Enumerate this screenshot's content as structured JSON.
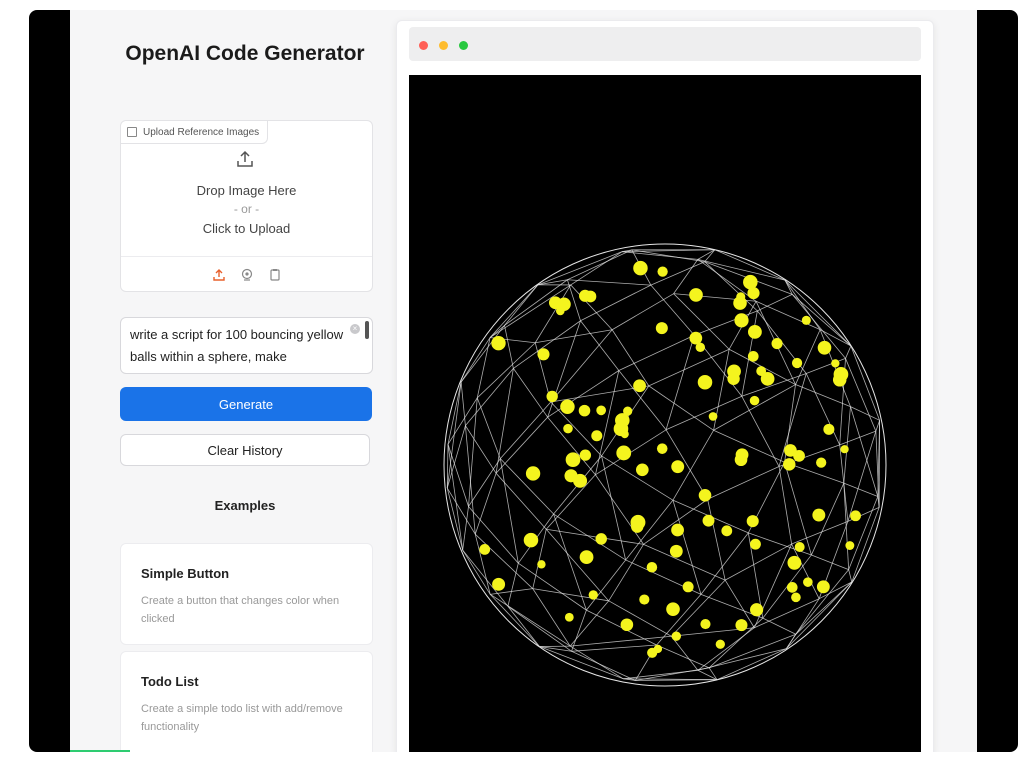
{
  "app": {
    "title": "OpenAI Code Generator"
  },
  "upload": {
    "label": "Upload Reference Images",
    "drop_text": "Drop Image Here",
    "or_text": "- or -",
    "click_text": "Click to Upload",
    "tools": [
      "upload-icon",
      "webcam-icon",
      "clipboard-icon"
    ]
  },
  "prompt": {
    "value": "write a script for 100 bouncing yellow balls within a sphere, make"
  },
  "buttons": {
    "generate": "Generate",
    "clear_history": "Clear History"
  },
  "examples": {
    "heading": "Examples",
    "items": [
      {
        "title": "Simple Button",
        "description": "Create a button that changes color when clicked"
      },
      {
        "title": "Todo List",
        "description": "Create a simple todo list with add/remove functionality"
      }
    ]
  },
  "preview": {
    "window_controls": [
      "close",
      "minimize",
      "maximize"
    ],
    "ball_color": "#f4f41e",
    "sphere_line_color": "#e6e6e6",
    "background": "#000000"
  },
  "colors": {
    "primary": "#1a73e8",
    "accent_upload_icon": "#e8602c"
  }
}
